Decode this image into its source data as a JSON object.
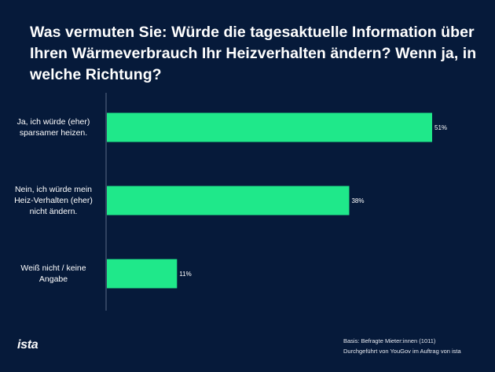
{
  "title": "Was vermuten Sie: Würde die tagesaktuelle Information über Ihren Wärmeverbrauch Ihr Heizverhalten ändern? Wenn ja, in welche Richtung?",
  "chart_data": {
    "type": "bar",
    "orientation": "horizontal",
    "categories": [
      "Ja, ich würde (eher) sparsamer heizen.",
      "Nein, ich würde mein Heiz-Verhalten (eher) nicht ändern.",
      "Weiß nicht / keine Angabe"
    ],
    "category_lines": [
      [
        "Ja, ich würde (eher)",
        "sparsamer heizen."
      ],
      [
        "Nein, ich würde mein",
        "Heiz-Verhalten (eher)",
        "nicht ändern."
      ],
      [
        "Weiß nicht / keine",
        "Angabe"
      ]
    ],
    "values": [
      51,
      38,
      11
    ],
    "value_labels": [
      "51%",
      "38%",
      "11%"
    ],
    "unit": "%",
    "xlim": [
      0,
      51
    ],
    "grid": false,
    "bar_color": "#1fe88a"
  },
  "footnote": {
    "line1": "Basis: Befragte Mieter:innen (1011)",
    "line2": "Durchgeführt von YouGov im Auftrag von ista"
  },
  "logo": "ista"
}
